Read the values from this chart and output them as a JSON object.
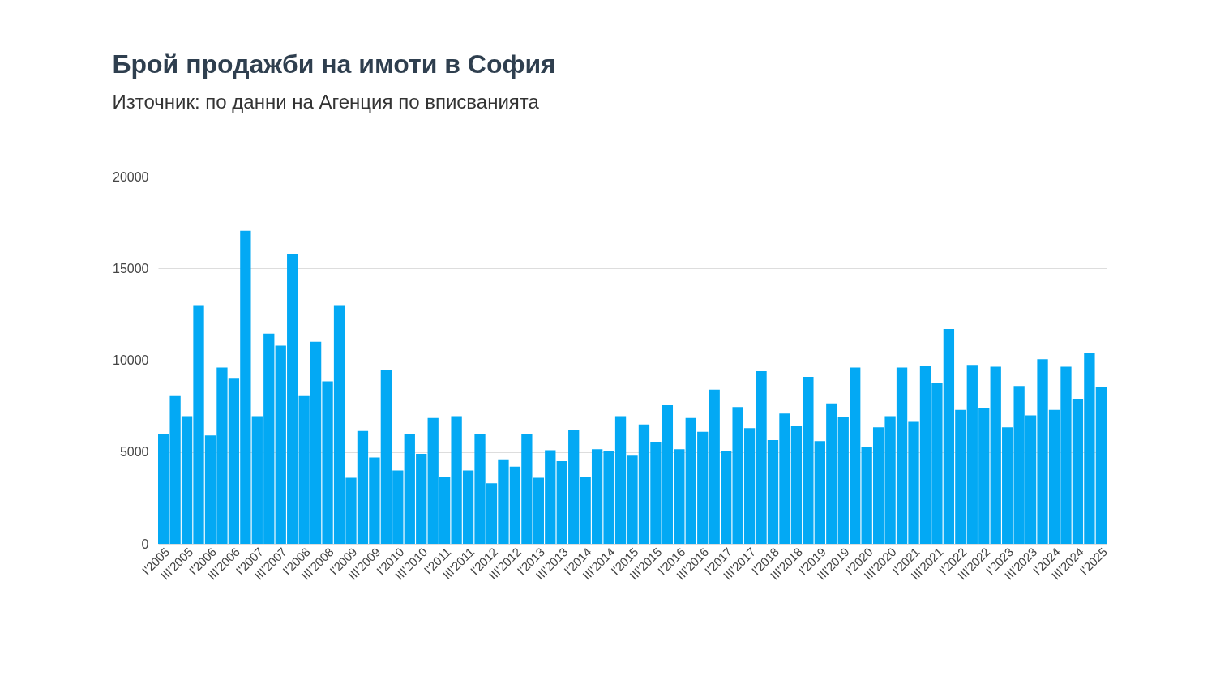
{
  "chart_data": {
    "type": "bar",
    "title": "Брой продажби на имоти в София",
    "subtitle": "Източник: по данни на Агенция по вписванията",
    "categories": [
      "I'2005",
      null,
      "III'2005",
      null,
      "I'2006",
      null,
      "III'2006",
      null,
      "I'2007",
      null,
      "III'2007",
      null,
      "I'2008",
      null,
      "III'2008",
      null,
      "I'2009",
      null,
      "III'2009",
      null,
      "I'2010",
      null,
      "III'2010",
      null,
      "I'2011",
      null,
      "III'2011",
      null,
      "I'2012",
      null,
      "III'2012",
      null,
      "I'2013",
      null,
      "III'2013",
      null,
      "I'2014",
      null,
      "III'2014",
      null,
      "I'2015",
      null,
      "III'2015",
      null,
      "I'2016",
      null,
      "III'2016",
      null,
      "I'2017",
      null,
      "III'2017",
      null,
      "I'2018",
      null,
      "III'2018",
      null,
      "I'2019",
      null,
      "III'2019",
      null,
      "I'2020",
      null,
      "III'2020",
      null,
      "I'2021",
      null,
      "III'2021",
      null,
      "I'2022",
      null,
      "III'2022",
      null,
      "I'2023",
      null,
      "III'2023",
      null,
      "I'2024",
      null,
      "III'2024",
      null,
      "I'2025"
    ],
    "values": [
      6000,
      8050,
      6950,
      13000,
      5900,
      9600,
      9000,
      17050,
      6950,
      11450,
      10800,
      15800,
      8050,
      11000,
      8850,
      13000,
      3600,
      6150,
      4700,
      9450,
      4000,
      6000,
      4900,
      6850,
      3650,
      6950,
      4000,
      6000,
      3300,
      4600,
      4200,
      6000,
      3600,
      5100,
      4500,
      6200,
      3650,
      5150,
      5050,
      6950,
      4800,
      6500,
      5550,
      7550,
      5150,
      6850,
      6100,
      8400,
      5050,
      7450,
      6300,
      9400,
      5650,
      7100,
      6400,
      9100,
      5600,
      7650,
      6900,
      9600,
      5300,
      6350,
      6950,
      9600,
      6650,
      9700,
      8750,
      11700,
      7300,
      9750,
      7400,
      9650,
      6350,
      8600,
      7000,
      10050,
      7300,
      9650,
      7900,
      10400,
      8550
    ],
    "color": "#03a9f4",
    "ylim": [
      0,
      20000
    ],
    "yticks": [
      0,
      5000,
      10000,
      15000,
      20000
    ],
    "grid": "y"
  }
}
